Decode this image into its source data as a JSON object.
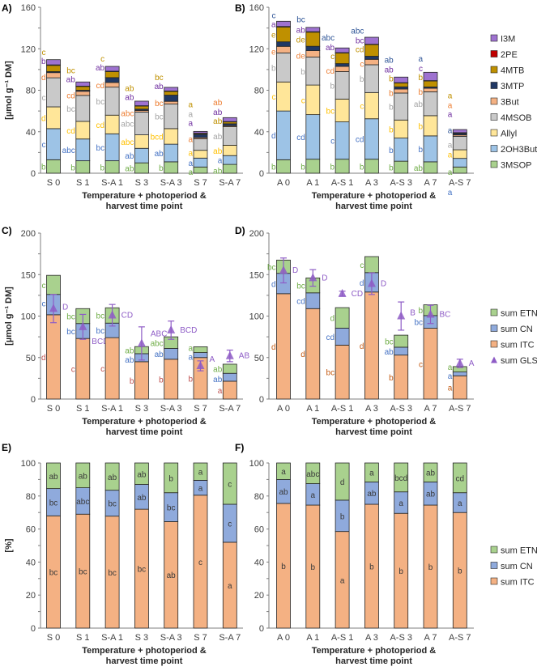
{
  "chart_data": [
    {
      "panel": "A)",
      "type": "bar",
      "stacked": true,
      "ylabel": "[µmol g⁻¹ DM]",
      "xlabel": [
        "Temperature + photoperiod  &",
        "harvest time point"
      ],
      "ylim": [
        0,
        160
      ],
      "yticks": [
        0,
        40,
        80,
        120,
        160
      ],
      "yminor": 20,
      "categories": [
        "S 0",
        "S 1",
        "S-A 1",
        "S 3",
        "S-A 3",
        "S 7",
        "S-A 7"
      ],
      "series": [
        {
          "name": "3MSOP",
          "color": "#a9d18e",
          "lcolor": "#70ad47",
          "values": [
            13,
            12,
            12,
            10,
            11,
            6,
            8.5
          ],
          "letters": [
            "b",
            "b",
            "b",
            "ab",
            "b",
            "a",
            "ab"
          ]
        },
        {
          "name": "2OH3But",
          "color": "#9dc3e6",
          "lcolor": "#4472c4",
          "values": [
            30,
            21,
            26,
            14,
            17,
            8.6,
            8.5
          ],
          "letters": [
            "c",
            "abc",
            "bc",
            "ab",
            "ab",
            "a",
            "a"
          ]
        },
        {
          "name": "Allyl",
          "color": "#ffe699",
          "lcolor": "#ffc000",
          "values": [
            21,
            17,
            18,
            13,
            15,
            7.5,
            10
          ],
          "letters": [
            "d",
            "cd",
            "cd",
            "abc",
            "bcd",
            "a",
            "ab"
          ]
        },
        {
          "name": "4MSOB",
          "color": "#c9c9c9",
          "lcolor": "#a5a5a5",
          "values": [
            28,
            25,
            27,
            22,
            23.7,
            11,
            17.8
          ],
          "letters": [
            "c",
            "bc",
            "bc",
            "abc",
            "bc",
            "a",
            "ab"
          ]
        },
        {
          "name": "3But",
          "color": "#f4b183",
          "lcolor": "#ed7d31",
          "values": [
            5,
            4,
            4.5,
            1.5,
            2.6,
            1.3,
            1
          ],
          "letters": [
            "d",
            "cd",
            "cd",
            "abc",
            "bc",
            "a",
            "ab"
          ]
        },
        {
          "name": "3MTP",
          "color": "#203864",
          "lcolor": "#2f5597",
          "values": [
            1,
            1,
            4.7,
            1.3,
            6,
            3,
            1.9
          ],
          "letters": [
            "",
            "",
            "",
            "",
            "",
            "",
            ""
          ]
        },
        {
          "name": "4MTB",
          "color": "#bf9000",
          "lcolor": "#bf9000",
          "values": [
            6,
            3.7,
            5.7,
            3,
            3.6,
            0.8,
            1.8
          ],
          "letters": [
            "c",
            "bc",
            "c",
            "ab",
            "bc",
            "a",
            "ab"
          ]
        },
        {
          "name": "2PE",
          "color": "#c00000",
          "lcolor": "#c00000",
          "values": [
            0.5,
            0.3,
            0.5,
            0.3,
            0.4,
            0.4,
            0.3
          ],
          "letters": [
            "",
            "",
            "",
            "",
            "",
            "",
            ""
          ]
        },
        {
          "name": "I3M",
          "color": "#9e72d0",
          "lcolor": "#7030a0",
          "values": [
            5,
            4,
            4.6,
            4.4,
            3.5,
            1.7,
            3.8
          ],
          "letters": [
            "b",
            "ab",
            "ab",
            "ab",
            "ab",
            "a",
            "ab"
          ]
        }
      ]
    },
    {
      "panel": "B)",
      "type": "bar",
      "stacked": true,
      "ylabel": "",
      "xlabel": [
        "Temperature + photoperiod  &",
        "harvest time point"
      ],
      "ylim": [
        0,
        160
      ],
      "yticks": [
        0,
        40,
        80,
        120,
        160
      ],
      "yminor": 20,
      "categories": [
        "A 0",
        "A 1",
        "A-S 1",
        "A 3",
        "A-S 3",
        "A 7",
        "A-S 7"
      ],
      "legend": "right",
      "series": [
        {
          "name": "3MSOP",
          "color": "#a9d18e",
          "lcolor": "#70ad47",
          "values": [
            13,
            13.5,
            13.5,
            13.5,
            11.6,
            11,
            6
          ],
          "letters": [
            "b",
            "b",
            "b",
            "b",
            "b",
            "ab",
            "a"
          ]
        },
        {
          "name": "2OH3But",
          "color": "#9dc3e6",
          "lcolor": "#4472c4",
          "values": [
            47,
            43,
            36,
            39,
            22.3,
            25,
            8.3
          ],
          "letters": [
            "d",
            "cd",
            "c",
            "cd",
            "b",
            "b",
            "a"
          ]
        },
        {
          "name": "Allyl",
          "color": "#ffe699",
          "lcolor": "#ffc000",
          "values": [
            28,
            28.5,
            22,
            25.3,
            17.4,
            19.5,
            8.3
          ],
          "letters": [
            "c",
            "c",
            "bc",
            "c",
            "b",
            "b",
            "a"
          ]
        },
        {
          "name": "4MSOB",
          "color": "#c9c9c9",
          "lcolor": "#a5a5a5",
          "values": [
            28,
            27,
            26.5,
            26.8,
            26,
            23,
            13
          ],
          "letters": [
            "b",
            "b",
            "b",
            "b",
            "b",
            "ab",
            "a"
          ]
        },
        {
          "name": "3But",
          "color": "#f4b183",
          "lcolor": "#ed7d31",
          "values": [
            6.3,
            6.2,
            5,
            5.2,
            3.9,
            3.4,
            1.3
          ],
          "letters": [
            "e",
            "de",
            "cd",
            "c",
            "b",
            "b",
            "a"
          ]
        },
        {
          "name": "3MTP",
          "color": "#203864",
          "lcolor": "#2f5597",
          "values": [
            4.4,
            4.2,
            2.7,
            3,
            2.1,
            1.3,
            1.3
          ],
          "letters": [
            "c",
            "bc",
            "abc",
            "abc",
            "ab",
            "a",
            "a"
          ]
        },
        {
          "name": "4MTB",
          "color": "#bf9000",
          "lcolor": "#bf9000",
          "values": [
            14.3,
            13.6,
            10.2,
            11.2,
            3.7,
            5.7,
            0.5
          ],
          "letters": [
            "e",
            "de",
            "c",
            "cd",
            "b",
            "b",
            "a"
          ]
        },
        {
          "name": "2PE",
          "color": "#c00000",
          "lcolor": "#c00000",
          "values": [
            0.5,
            0.5,
            0.4,
            0.4,
            0.3,
            0.4,
            0.4
          ],
          "letters": [
            "",
            "",
            "",
            "",
            "",
            "",
            ""
          ]
        },
        {
          "name": "I3M",
          "color": "#9e72d0",
          "lcolor": "#7030a0",
          "values": [
            5,
            4.1,
            4.5,
            6.7,
            5.4,
            8,
            3
          ],
          "letters": [
            "a",
            "ab",
            "ab",
            "bc",
            "ab",
            "c",
            "a"
          ]
        }
      ]
    },
    {
      "panel": "C)",
      "type": "bar",
      "stacked": true,
      "ylabel": "[µmol g⁻¹ DM]",
      "xlabel": [
        "Temperature + photoperiod  &",
        "harvest time point"
      ],
      "ylim": [
        0,
        200
      ],
      "yticks": [
        0,
        50,
        100,
        150,
        200
      ],
      "yminor": 25,
      "categories": [
        "S 0",
        "S 1",
        "S-A 1",
        "S 3",
        "S-A 3",
        "S 7",
        "S-A 7"
      ],
      "series": [
        {
          "name": "sum ITC",
          "color": "#f4b183",
          "lcolor": "#c0504d",
          "values": [
            101.6,
            73,
            74,
            45,
            48,
            50,
            21.5
          ],
          "letters": [
            "d",
            "c",
            "c",
            "b",
            "b",
            "b",
            "a"
          ]
        },
        {
          "name": "sum CN",
          "color": "#8faadc",
          "lcolor": "#4472c4",
          "values": [
            24.5,
            18,
            17.5,
            9.7,
            13,
            6,
            9.5
          ],
          "letters": [
            "c",
            "bc",
            "bc",
            "ab",
            "ab",
            "a",
            "ab"
          ]
        },
        {
          "name": "sum ETN",
          "color": "#a9d18e",
          "lcolor": "#70ad47",
          "values": [
            23,
            18,
            18.5,
            8.5,
            14,
            7,
            11
          ],
          "letters": [
            "c",
            "bc",
            "bc",
            "ab",
            "abc",
            "a",
            "ab"
          ]
        }
      ],
      "gls": {
        "name": "sum GLS",
        "color": "#8e5cc6",
        "values": [
          109,
          87,
          101,
          67,
          83,
          40,
          52
        ],
        "err": [
          17,
          15,
          13,
          20,
          11,
          6,
          7
        ],
        "letters": [
          "D",
          "BCD",
          "CD",
          "ABC",
          "BCD",
          "A",
          "AB"
        ]
      }
    },
    {
      "panel": "D)",
      "type": "bar",
      "stacked": true,
      "ylabel": "",
      "xlabel": [
        "Temperature + photoperiod  &",
        "harvest time point"
      ],
      "ylim": [
        0,
        200
      ],
      "yticks": [
        0,
        50,
        100,
        150,
        200
      ],
      "yminor": 25,
      "categories": [
        "A 0",
        "A 1",
        "A-S 1",
        "A 3",
        "A-S 3",
        "A 7",
        "A-S 7"
      ],
      "legend": "right",
      "series": [
        {
          "name": "sum ITC",
          "color": "#f4b183",
          "lcolor": "#c55a11",
          "values": [
            127,
            109,
            65,
            129,
            53,
            85.3,
            28
          ],
          "letters": [
            "d",
            "d",
            "bc",
            "d",
            "b",
            "c",
            "a"
          ]
        },
        {
          "name": "sum CN",
          "color": "#8faadc",
          "lcolor": "#4472c4",
          "values": [
            24.5,
            19,
            20.5,
            23.4,
            9.5,
            15.3,
            4.6
          ],
          "letters": [
            "d",
            "cd",
            "cd",
            "d",
            "ab",
            "bc",
            "a"
          ]
        },
        {
          "name": "sum ETN",
          "color": "#a9d18e",
          "lcolor": "#70ad47",
          "values": [
            16,
            18,
            24.7,
            19.3,
            14.5,
            13,
            6.5
          ],
          "letters": [
            "bc",
            "bc",
            "d",
            "c",
            "bc",
            "b",
            "a"
          ]
        }
      ],
      "gls": {
        "name": "sum GLS",
        "color": "#8e5cc6",
        "values": [
          155,
          146,
          127,
          139,
          100,
          102,
          43
        ],
        "err": [
          15,
          10,
          3,
          13,
          17,
          11,
          5
        ],
        "letters": [
          "D",
          "D",
          "CD",
          "D",
          "B",
          "BC",
          "A"
        ]
      }
    },
    {
      "panel": "E)",
      "type": "bar",
      "stacked": true,
      "ylabel": "[%]",
      "xlabel": [
        "Temperature + photoperiod  &",
        "harvest time point"
      ],
      "ylim": [
        0,
        100
      ],
      "yticks": [
        0,
        20,
        40,
        60,
        80,
        100
      ],
      "yminor": 10,
      "categories": [
        "S 0",
        "S 1",
        "S-A 1",
        "S 3",
        "S-A 3",
        "S 7",
        "S-A 7"
      ],
      "series": [
        {
          "name": "sum ITC",
          "color": "#f4b183",
          "lcolor": "#3a3a3a",
          "values": [
            68,
            69,
            67.8,
            72,
            64.5,
            80.5,
            52
          ],
          "letters": [
            "bc",
            "bc",
            "bc",
            "bc",
            "ab",
            "c",
            "a"
          ]
        },
        {
          "name": "sum CN",
          "color": "#8faadc",
          "lcolor": "#3a3a3a",
          "values": [
            16.5,
            16,
            15.7,
            15,
            17.5,
            9,
            23
          ],
          "letters": [
            "bc",
            "abc",
            "bc",
            "ab",
            "bc",
            "a",
            "c"
          ]
        },
        {
          "name": "sum ETN",
          "color": "#a9d18e",
          "lcolor": "#3a3a3a",
          "values": [
            15.5,
            15,
            16.5,
            13,
            18,
            10.5,
            25
          ],
          "letters": [
            "ab",
            "ab",
            "ab",
            "ab",
            "b",
            "a",
            "c"
          ]
        }
      ]
    },
    {
      "panel": "F)",
      "type": "bar",
      "stacked": true,
      "ylabel": "",
      "xlabel": [
        "Temperature + photoperiod  &",
        "harvest time point"
      ],
      "ylim": [
        0,
        100
      ],
      "yticks": [
        0,
        20,
        40,
        60,
        80,
        100
      ],
      "yminor": 10,
      "categories": [
        "A 0",
        "A 1",
        "A-S 1",
        "A 3",
        "A-S 3",
        "A 7",
        "A-S 7"
      ],
      "legend": "right",
      "series": [
        {
          "name": "sum ITC",
          "color": "#f4b183",
          "lcolor": "#3a3a3a",
          "values": [
            75.5,
            74.5,
            58.5,
            75,
            69.5,
            74.5,
            70
          ],
          "letters": [
            "b",
            "b",
            "a",
            "b",
            "b",
            "b",
            "b"
          ]
        },
        {
          "name": "sum CN",
          "color": "#8faadc",
          "lcolor": "#3a3a3a",
          "values": [
            14.5,
            13,
            19,
            13.5,
            13,
            14,
            12
          ],
          "letters": [
            "ab",
            "a",
            "b",
            "ab",
            "a",
            "ab",
            "a"
          ]
        },
        {
          "name": "sum ETN",
          "color": "#a9d18e",
          "lcolor": "#3a3a3a",
          "values": [
            10,
            12.5,
            22.5,
            11.5,
            17.5,
            11.5,
            18
          ],
          "letters": [
            "a",
            "abc",
            "d",
            "a",
            "bcd",
            "ab",
            "cd"
          ]
        }
      ]
    }
  ]
}
